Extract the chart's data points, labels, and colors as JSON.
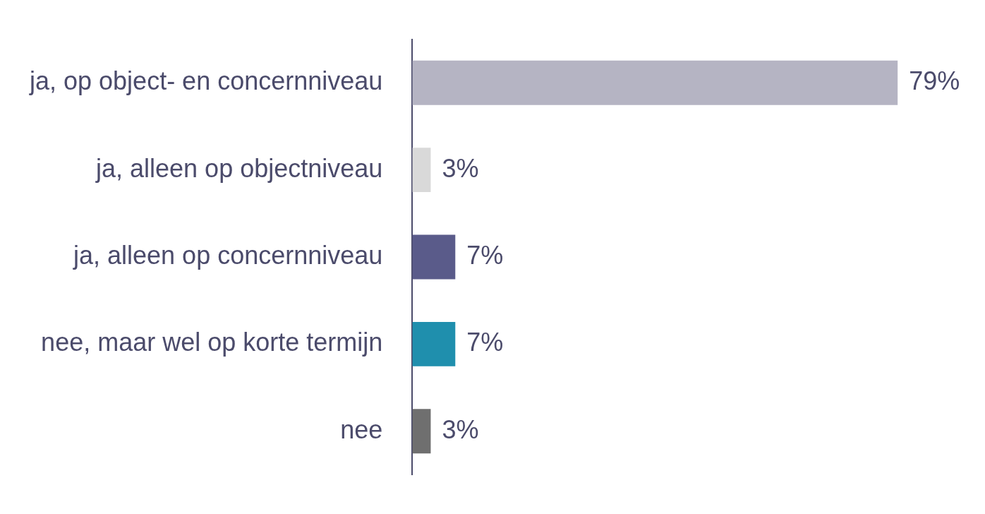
{
  "chart_data": {
    "type": "bar",
    "orientation": "horizontal",
    "categories": [
      "ja, op object- en concernniveau",
      "ja, alleen op objectniveau",
      "ja, alleen op concernniveau",
      "nee, maar wel op korte termijn",
      "nee"
    ],
    "values": [
      79,
      3,
      7,
      7,
      3
    ],
    "colors": [
      "#b5b4c3",
      "#d9d9d9",
      "#5a5b8a",
      "#1f8fad",
      "#6f6f6f"
    ],
    "value_labels": [
      "79%",
      "3%",
      "7%",
      "7%",
      "3%"
    ],
    "legend": false
  }
}
